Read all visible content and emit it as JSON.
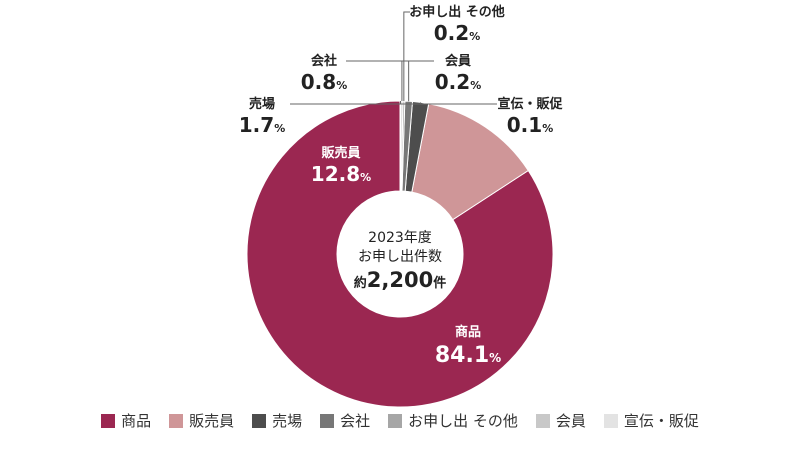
{
  "chart_data": {
    "type": "pie",
    "variant": "donut",
    "center_text": {
      "line1": "2023年度",
      "line2": "お申し出件数",
      "prefix": "約",
      "value": "2,200",
      "suffix": "件"
    },
    "slices": [
      {
        "label": "商品",
        "value": 84.1,
        "value_text": "84.1",
        "color": "#9b2751",
        "label_color": "#ffffff"
      },
      {
        "label": "販売員",
        "value": 12.8,
        "value_text": "12.8",
        "color": "#cf9698",
        "label_color": "#ffffff"
      },
      {
        "label": "売場",
        "value": 1.7,
        "value_text": "1.7",
        "color": "#4d4d4d",
        "label_color": "#222222"
      },
      {
        "label": "会社",
        "value": 0.8,
        "value_text": "0.8",
        "color": "#777777",
        "label_color": "#222222"
      },
      {
        "label": "お申し出 その他",
        "value": 0.2,
        "value_text": "0.2",
        "color": "#a6a6a6",
        "label_color": "#222222"
      },
      {
        "label": "会員",
        "value": 0.2,
        "value_text": "0.2",
        "color": "#c8c8c8",
        "label_color": "#222222"
      },
      {
        "label": "宣伝・販促",
        "value": 0.1,
        "value_text": "0.1",
        "color": "#e3e3e3",
        "label_color": "#222222"
      }
    ],
    "unit": "%",
    "legend": [
      {
        "label": "商品",
        "color": "#9b2751"
      },
      {
        "label": "販売員",
        "color": "#cf9698"
      },
      {
        "label": "売場",
        "color": "#4d4d4d"
      },
      {
        "label": "会社",
        "color": "#777777"
      },
      {
        "label": "お申し出 その他",
        "color": "#a6a6a6"
      },
      {
        "label": "会員",
        "color": "#c8c8c8"
      },
      {
        "label": "宣伝・販促",
        "color": "#e3e3e3"
      }
    ],
    "legend_position": "bottom"
  }
}
